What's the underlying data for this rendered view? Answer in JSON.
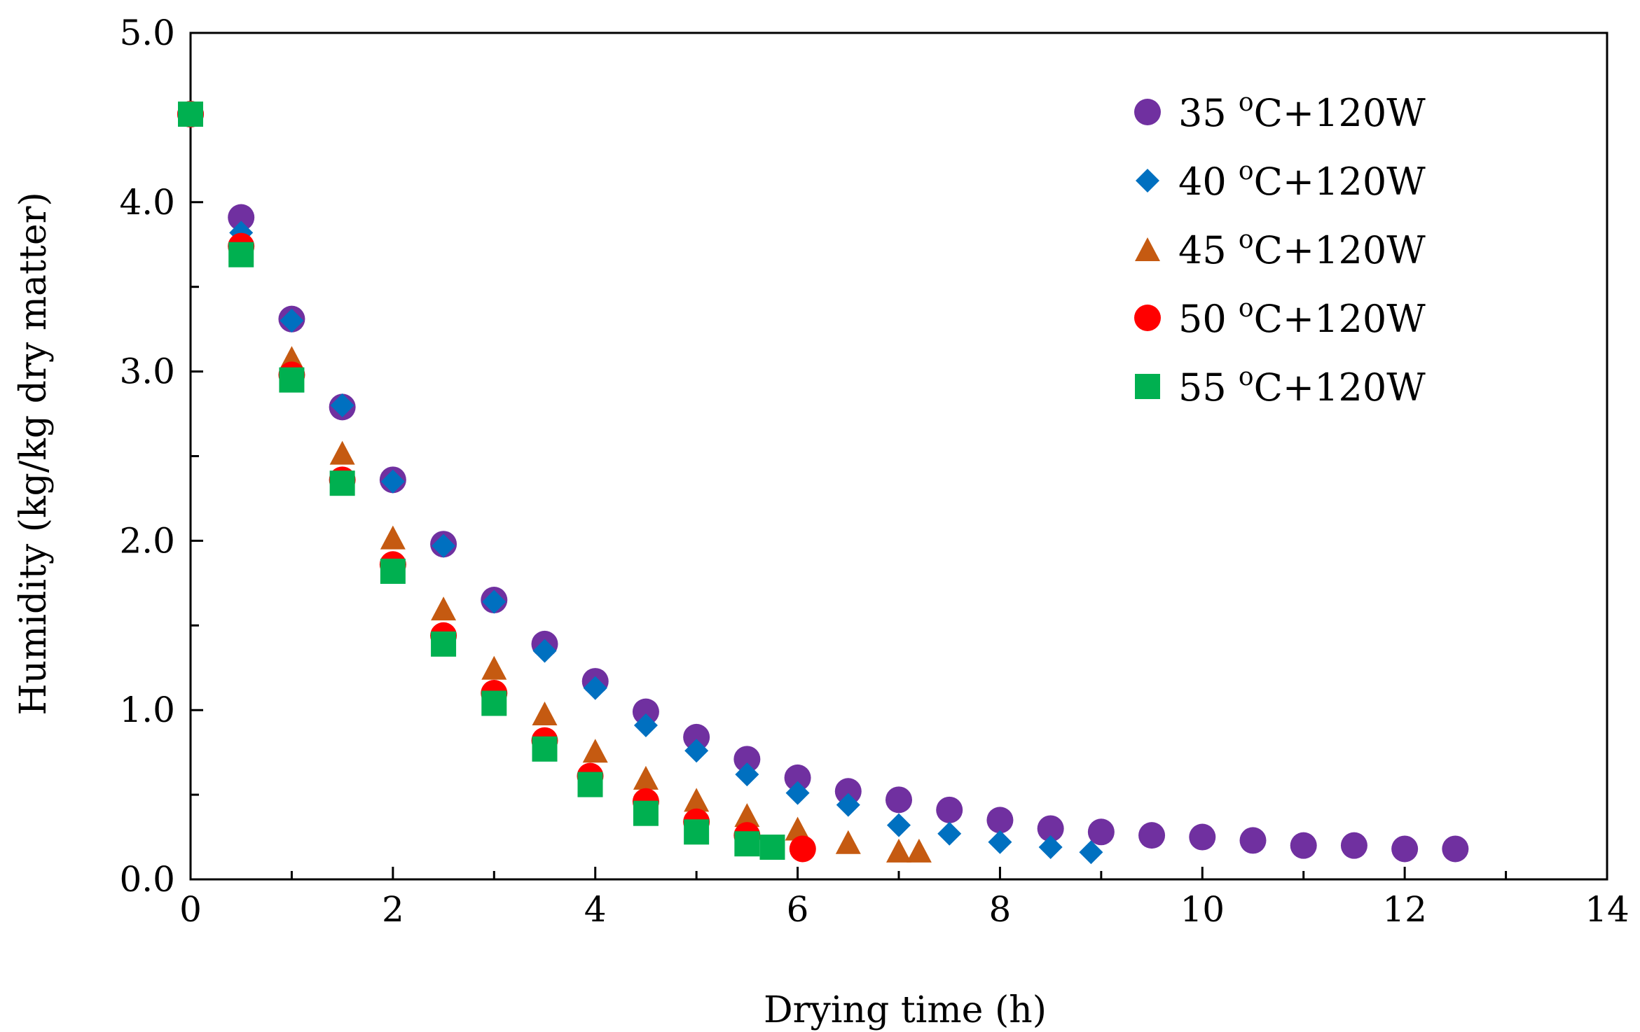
{
  "chart_data": {
    "type": "scatter",
    "title": "",
    "xlabel": "Drying time (h)",
    "ylabel": "Humidity (kg/kg dry matter)",
    "xlim": [
      0,
      14
    ],
    "ylim": [
      0,
      5.0
    ],
    "x_ticks": [
      "0",
      "2",
      "4",
      "6",
      "8",
      "10",
      "12",
      "14"
    ],
    "y_ticks": [
      "0.0",
      "1.0",
      "2.0",
      "3.0",
      "4.0",
      "5.0"
    ],
    "legend_position": "top-right",
    "series": [
      {
        "name": "35 °C+120W",
        "label_temp": "35 ",
        "label_deg": "o",
        "label_rest": "C+120W",
        "marker": "circle",
        "color": "#7030a0",
        "x": [
          0,
          0.5,
          1,
          1.5,
          2,
          2.5,
          3,
          3.5,
          4,
          4.5,
          5,
          5.5,
          6,
          6.5,
          7,
          7.5,
          8,
          8.5,
          9,
          9.5,
          10,
          10.5,
          11,
          11.5,
          12,
          12.5
        ],
        "y": [
          4.52,
          3.91,
          3.31,
          2.79,
          2.36,
          1.98,
          1.65,
          1.39,
          1.17,
          0.99,
          0.84,
          0.71,
          0.6,
          0.52,
          0.47,
          0.41,
          0.35,
          0.3,
          0.28,
          0.26,
          0.25,
          0.23,
          0.2,
          0.2,
          0.18,
          0.18
        ]
      },
      {
        "name": "40 °C+120W",
        "label_temp": "40 ",
        "label_deg": "o",
        "label_rest": "C+120W",
        "marker": "diamond",
        "color": "#0070c0",
        "x": [
          0,
          0.5,
          1,
          1.5,
          2,
          2.5,
          3,
          3.5,
          4,
          4.5,
          5,
          5.5,
          6,
          6.5,
          7,
          7.5,
          8,
          8.5,
          8.9
        ],
        "y": [
          4.52,
          3.82,
          3.3,
          2.8,
          2.35,
          1.97,
          1.64,
          1.35,
          1.13,
          0.91,
          0.76,
          0.62,
          0.51,
          0.44,
          0.32,
          0.27,
          0.22,
          0.19,
          0.16
        ]
      },
      {
        "name": "45 °C+120W",
        "label_temp": "45 ",
        "label_deg": "o",
        "label_rest": "C+120W",
        "marker": "triangle",
        "color": "#c55a11",
        "x": [
          0,
          0.5,
          1,
          1.5,
          2,
          2.5,
          3,
          3.5,
          4,
          4.5,
          5,
          5.5,
          6,
          6.5,
          7,
          7.2
        ],
        "y": [
          4.52,
          3.72,
          3.08,
          2.52,
          2.02,
          1.6,
          1.25,
          0.98,
          0.76,
          0.6,
          0.47,
          0.38,
          0.3,
          0.22,
          0.17,
          0.17
        ]
      },
      {
        "name": "50 °C+120W",
        "label_temp": "50 ",
        "label_deg": "o",
        "label_rest": "C+120W",
        "marker": "circle",
        "color": "#ff0000",
        "x": [
          0,
          0.5,
          1,
          1.5,
          2,
          2.5,
          3,
          3.5,
          3.95,
          4.5,
          5,
          5.5,
          6.05
        ],
        "y": [
          4.52,
          3.74,
          2.98,
          2.36,
          1.86,
          1.44,
          1.1,
          0.82,
          0.61,
          0.46,
          0.34,
          0.26,
          0.18
        ]
      },
      {
        "name": "55 °C+120W",
        "label_temp": "55 ",
        "label_deg": "o",
        "label_rest": "C+120W",
        "marker": "square",
        "color": "#00b050",
        "x": [
          0,
          0.5,
          1,
          1.5,
          2,
          2.5,
          3,
          3.5,
          3.95,
          4.5,
          5,
          5.5,
          5.75
        ],
        "y": [
          4.52,
          3.69,
          2.95,
          2.34,
          1.82,
          1.39,
          1.04,
          0.77,
          0.56,
          0.39,
          0.28,
          0.21,
          0.19
        ]
      }
    ]
  }
}
